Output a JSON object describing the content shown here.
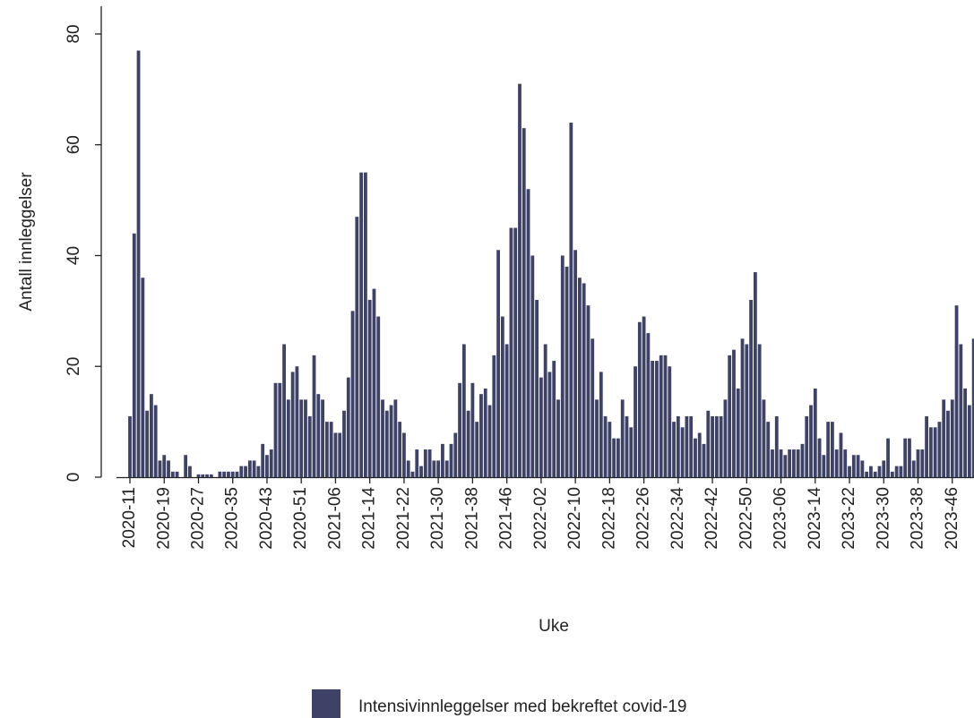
{
  "chart_data": {
    "type": "bar",
    "x_label": "Uke",
    "y_label": "Antall innleggelser",
    "categories": [
      "2020-11",
      null,
      null,
      null,
      null,
      null,
      null,
      null,
      "2020-19",
      null,
      null,
      null,
      null,
      null,
      null,
      null,
      "2020-27",
      null,
      null,
      null,
      null,
      null,
      null,
      null,
      "2020-35",
      null,
      null,
      null,
      null,
      null,
      null,
      null,
      "2020-43",
      null,
      null,
      null,
      null,
      null,
      null,
      null,
      "2020-51",
      null,
      null,
      null,
      null,
      null,
      null,
      null,
      "2021-06",
      null,
      null,
      null,
      null,
      null,
      null,
      null,
      "2021-14",
      null,
      null,
      null,
      null,
      null,
      null,
      null,
      "2021-22",
      null,
      null,
      null,
      null,
      null,
      null,
      null,
      "2021-30",
      null,
      null,
      null,
      null,
      null,
      null,
      null,
      "2021-38",
      null,
      null,
      null,
      null,
      null,
      null,
      null,
      "2021-46",
      null,
      null,
      null,
      null,
      null,
      null,
      null,
      "2022-02",
      null,
      null,
      null,
      null,
      null,
      null,
      null,
      "2022-10",
      null,
      null,
      null,
      null,
      null,
      null,
      null,
      "2022-18",
      null,
      null,
      null,
      null,
      null,
      null,
      null,
      "2022-26",
      null,
      null,
      null,
      null,
      null,
      null,
      null,
      "2022-34",
      null,
      null,
      null,
      null,
      null,
      null,
      null,
      "2022-42",
      null,
      null,
      null,
      null,
      null,
      null,
      null,
      "2022-50",
      null,
      null,
      null,
      null,
      null,
      null,
      null,
      "2023-06",
      null,
      null,
      null,
      null,
      null,
      null,
      null,
      "2023-14",
      null,
      null,
      null,
      null,
      null,
      null,
      null,
      "2023-22",
      null,
      null,
      null,
      null,
      null,
      null,
      null,
      "2023-30",
      null,
      null,
      null,
      null,
      null,
      null,
      null,
      "2023-38",
      null,
      null,
      null,
      null,
      null,
      null,
      null,
      "2023-46",
      null,
      null,
      null,
      null,
      null
    ],
    "series": [
      {
        "name": "Intensivinnleggelser med bekreftet covid-19",
        "color": "#3d4266",
        "values": [
          11,
          44,
          77,
          36,
          12,
          15,
          13,
          3,
          4,
          3,
          1,
          1,
          0,
          4,
          2,
          0,
          0.5,
          0.5,
          0.5,
          0.5,
          0,
          1,
          1,
          1,
          1,
          1,
          2,
          2,
          3,
          3,
          2,
          6,
          4,
          5,
          17,
          17,
          24,
          14,
          19,
          20,
          14,
          14,
          11,
          22,
          15,
          14,
          10,
          10,
          8,
          8,
          12,
          18,
          30,
          47,
          55,
          55,
          32,
          34,
          29,
          14,
          12,
          13,
          14,
          10,
          8,
          3,
          1,
          5,
          2,
          5,
          5,
          3,
          3,
          6,
          3,
          6,
          8,
          17,
          24,
          12,
          17,
          10,
          15,
          16,
          13,
          22,
          41,
          29,
          24,
          45,
          45,
          71,
          63,
          52,
          40,
          32,
          18,
          24,
          19,
          21,
          14,
          40,
          38,
          64,
          41,
          36,
          35,
          31,
          25,
          14,
          19,
          11,
          10,
          7,
          7,
          14,
          11,
          9,
          20,
          28,
          29,
          26,
          21,
          21,
          22,
          22,
          20,
          10,
          11,
          9,
          11,
          11,
          7,
          8,
          6,
          12,
          11,
          11,
          11,
          14,
          22,
          23,
          16,
          25,
          24,
          32,
          37,
          24,
          14,
          10,
          5,
          11,
          5,
          4,
          5,
          5,
          5,
          6,
          11,
          13,
          16,
          7,
          4,
          10,
          10,
          5,
          8,
          5,
          2,
          4,
          4,
          3,
          1,
          2,
          1,
          2,
          3,
          7,
          1,
          2,
          2,
          7,
          7,
          3,
          5,
          5,
          11,
          9,
          9,
          10,
          14,
          12,
          14,
          31,
          24,
          16,
          13,
          25
        ]
      }
    ],
    "ylim": [
      0,
      85
    ],
    "yticks": [
      0,
      20,
      40,
      60,
      80
    ],
    "legend": "bottom"
  }
}
